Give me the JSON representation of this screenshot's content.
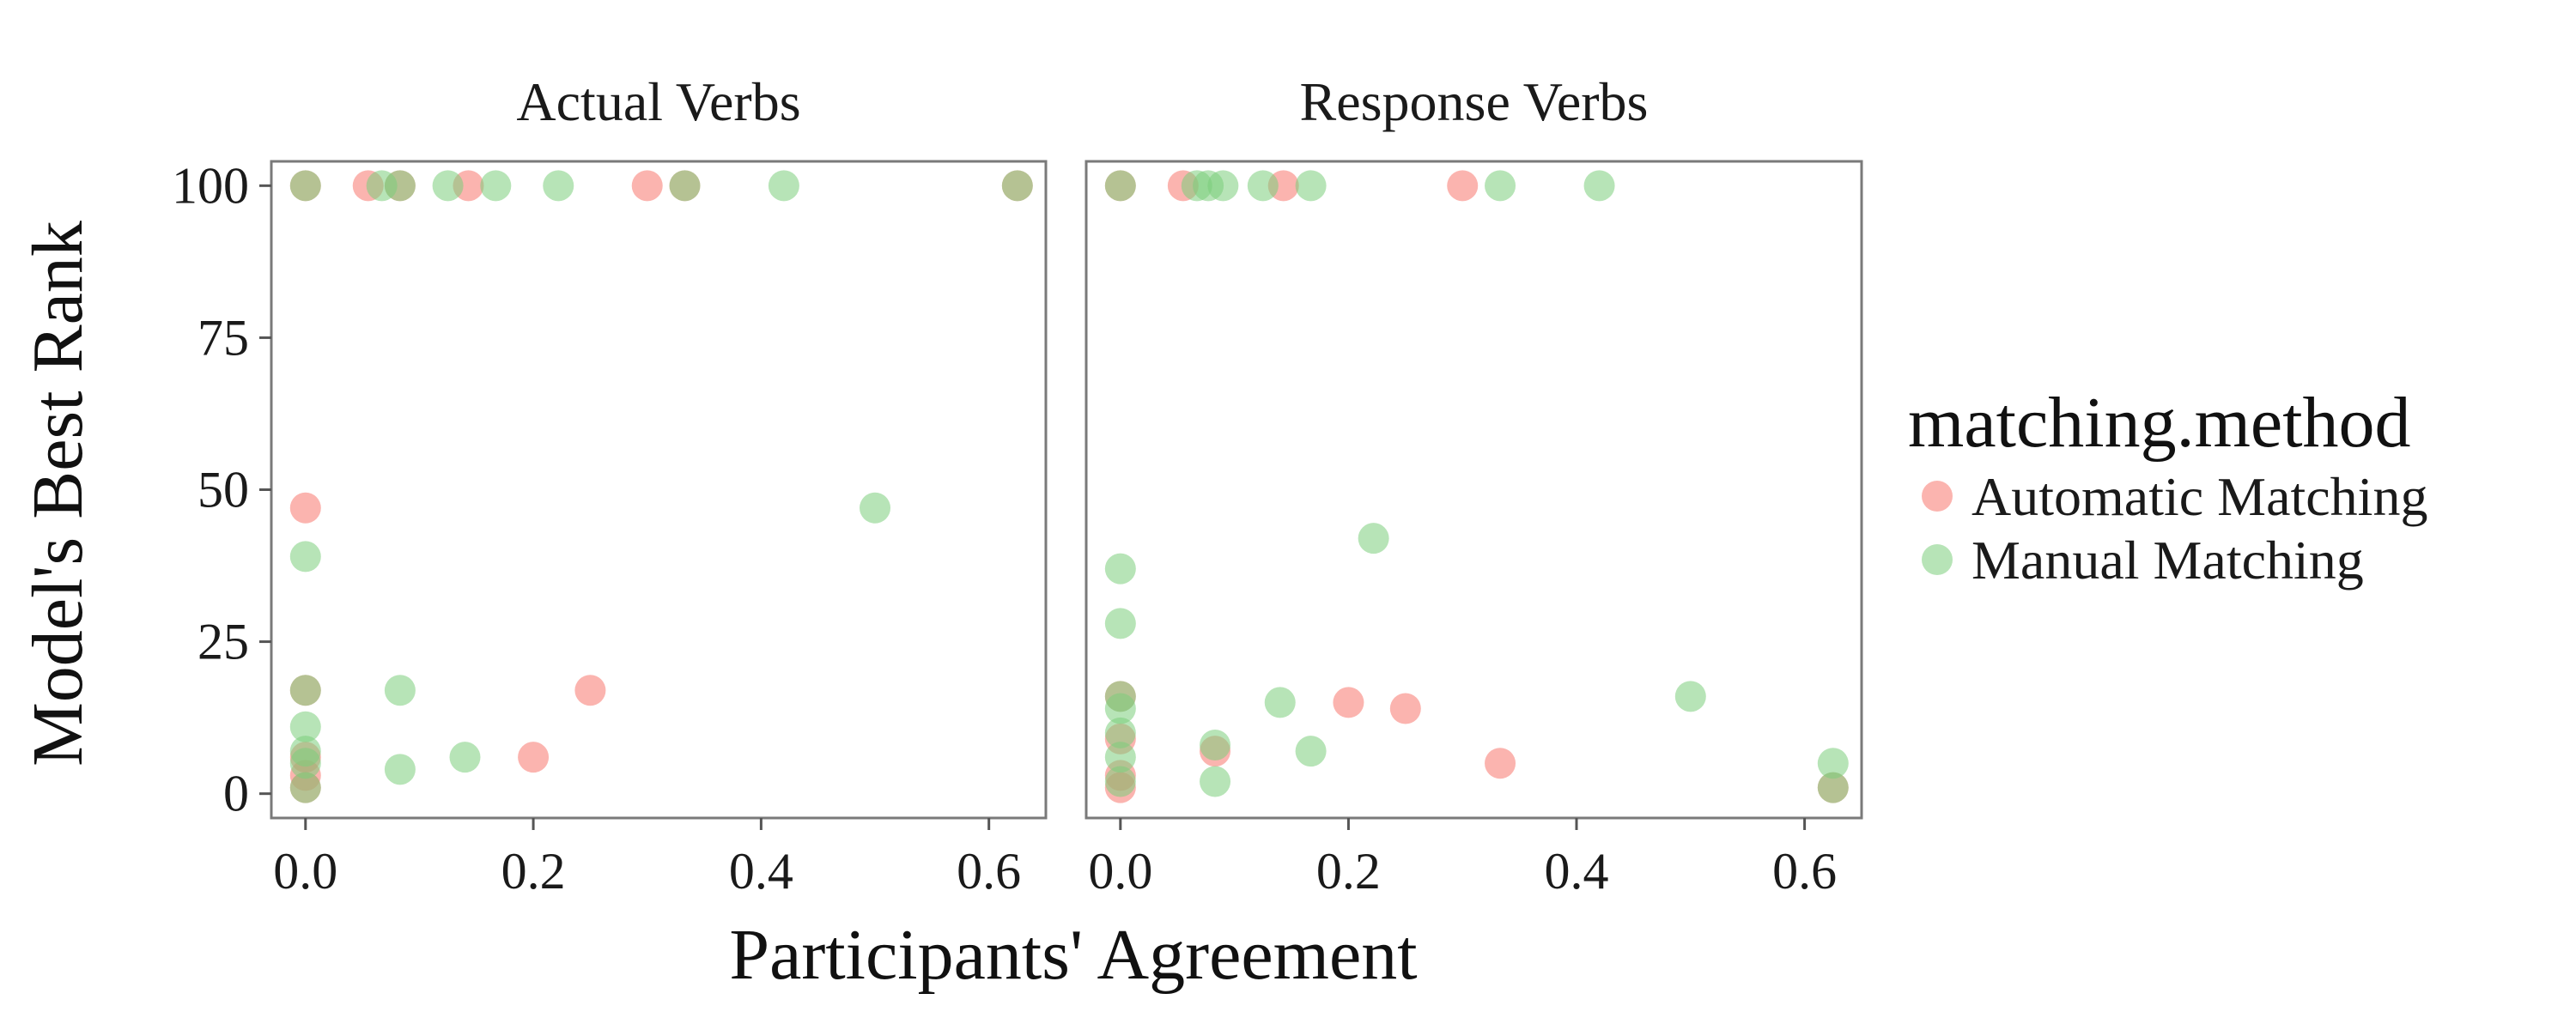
{
  "chart_data": {
    "type": "scatter",
    "xlabel": "Participants' Agreement",
    "ylabel": "Model's Best Rank",
    "xlim": [
      -0.03,
      0.65
    ],
    "ylim": [
      -4,
      104
    ],
    "x_ticks": [
      0.0,
      0.2,
      0.4,
      0.6
    ],
    "x_tick_labels": [
      "0.0",
      "0.2",
      "0.4",
      "0.6"
    ],
    "y_ticks": [
      0,
      25,
      50,
      75,
      100
    ],
    "y_tick_labels": [
      "0",
      "25",
      "50",
      "75",
      "100"
    ],
    "grid": false,
    "legend": {
      "title": "matching.method",
      "placement": "right",
      "entries": [
        {
          "label": "Automatic Matching",
          "color": "#F8766D"
        },
        {
          "label": "Manual Matching",
          "color": "#7CCD7C"
        }
      ]
    },
    "colors": {
      "automatic": "#F8766D",
      "manual": "#7CCD7C"
    },
    "point_alpha": 0.55,
    "facets": [
      {
        "title": "Actual Verbs",
        "series": [
          {
            "name": "Automatic Matching",
            "points": [
              [
                0.0,
                100
              ],
              [
                0.0,
                47
              ],
              [
                0.0,
                17
              ],
              [
                0.0,
                6
              ],
              [
                0.0,
                3
              ],
              [
                0.0,
                1
              ],
              [
                0.055,
                100
              ],
              [
                0.083,
                100
              ],
              [
                0.143,
                100
              ],
              [
                0.2,
                6
              ],
              [
                0.25,
                17
              ],
              [
                0.3,
                100
              ],
              [
                0.333,
                100
              ],
              [
                0.625,
                100
              ]
            ]
          },
          {
            "name": "Manual Matching",
            "points": [
              [
                0.0,
                100
              ],
              [
                0.0,
                39
              ],
              [
                0.0,
                17
              ],
              [
                0.0,
                11
              ],
              [
                0.0,
                7
              ],
              [
                0.0,
                5
              ],
              [
                0.0,
                1
              ],
              [
                0.067,
                100
              ],
              [
                0.083,
                100
              ],
              [
                0.083,
                17
              ],
              [
                0.083,
                4
              ],
              [
                0.125,
                100
              ],
              [
                0.14,
                6
              ],
              [
                0.167,
                100
              ],
              [
                0.222,
                100
              ],
              [
                0.333,
                100
              ],
              [
                0.42,
                100
              ],
              [
                0.5,
                47
              ],
              [
                0.625,
                100
              ]
            ]
          }
        ]
      },
      {
        "title": "Response Verbs",
        "series": [
          {
            "name": "Automatic Matching",
            "points": [
              [
                0.0,
                100
              ],
              [
                0.0,
                16
              ],
              [
                0.0,
                9
              ],
              [
                0.0,
                3
              ],
              [
                0.0,
                1
              ],
              [
                0.055,
                100
              ],
              [
                0.083,
                7
              ],
              [
                0.143,
                100
              ],
              [
                0.2,
                15
              ],
              [
                0.25,
                14
              ],
              [
                0.3,
                100
              ],
              [
                0.333,
                5
              ],
              [
                0.625,
                1
              ]
            ]
          },
          {
            "name": "Manual Matching",
            "points": [
              [
                0.0,
                100
              ],
              [
                0.0,
                37
              ],
              [
                0.0,
                28
              ],
              [
                0.0,
                16
              ],
              [
                0.0,
                14
              ],
              [
                0.0,
                10
              ],
              [
                0.0,
                6
              ],
              [
                0.0,
                2
              ],
              [
                0.067,
                100
              ],
              [
                0.077,
                100
              ],
              [
                0.083,
                8
              ],
              [
                0.083,
                2
              ],
              [
                0.09,
                100
              ],
              [
                0.125,
                100
              ],
              [
                0.14,
                15
              ],
              [
                0.167,
                100
              ],
              [
                0.167,
                7
              ],
              [
                0.222,
                42
              ],
              [
                0.333,
                100
              ],
              [
                0.42,
                100
              ],
              [
                0.5,
                16
              ],
              [
                0.625,
                5
              ],
              [
                0.625,
                1
              ]
            ]
          }
        ]
      }
    ]
  }
}
